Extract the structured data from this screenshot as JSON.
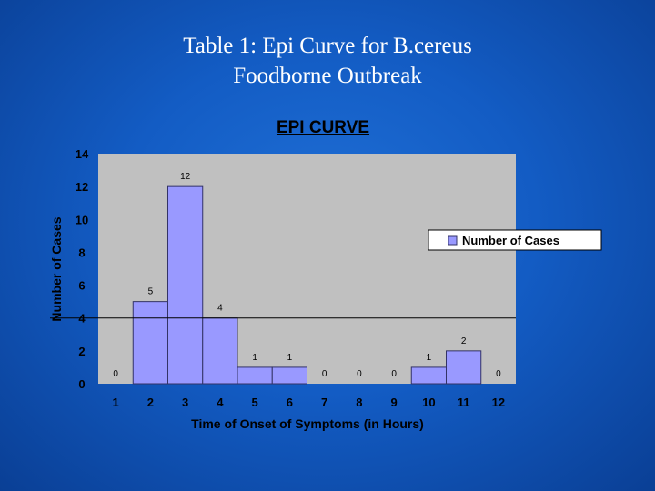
{
  "slide": {
    "title_line1": "Table 1: Epi Curve for B.cereus",
    "title_line2": "Foodborne Outbreak"
  },
  "chart_data": {
    "type": "bar",
    "title": "EPI CURVE",
    "xlabel": "Time of Onset of Symptoms (in Hours)",
    "ylabel": "Number of Cases",
    "categories": [
      "1",
      "2",
      "3",
      "4",
      "5",
      "6",
      "7",
      "8",
      "9",
      "10",
      "11",
      "12"
    ],
    "series": [
      {
        "name": "Number of Cases",
        "values": [
          0,
          5,
          12,
          4,
          1,
          1,
          0,
          0,
          0,
          1,
          2,
          0
        ]
      }
    ],
    "ylim": [
      0,
      14
    ],
    "yticks": [
      0,
      2,
      4,
      6,
      8,
      10,
      12,
      14
    ],
    "data_labels": true,
    "reference_line_y": 4,
    "legend_position": "right",
    "colors": {
      "bar_fill": "#9999ff",
      "bar_stroke": "#333366",
      "plot_background": "#c0c0c0",
      "text": "#000000"
    }
  }
}
